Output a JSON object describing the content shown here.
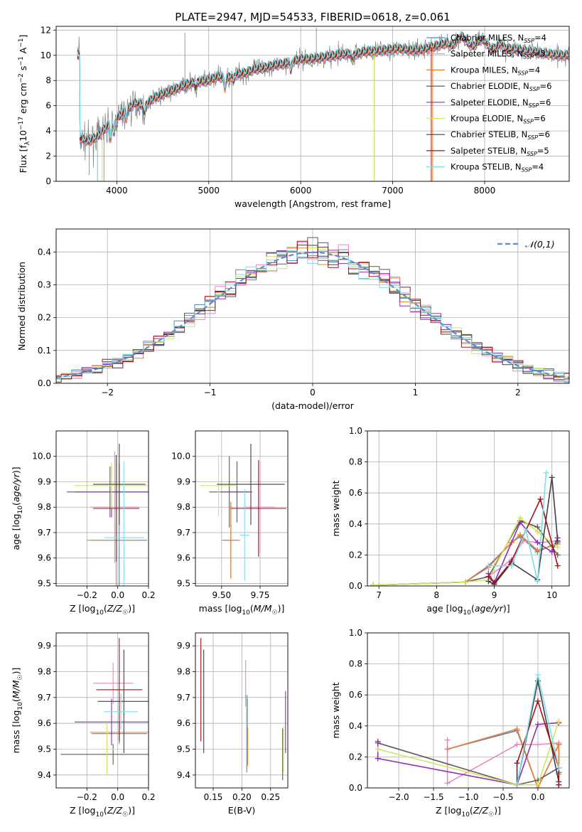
{
  "title": "PLATE=2947, MJD=54533, FIBERID=0618, z=0.061",
  "colors": [
    "#4c8bc9",
    "#e889c0",
    "#ef7f2d",
    "#5b5b5b",
    "#8e2fb2",
    "#d4e45e",
    "#404040",
    "#a5101a",
    "#7fdde6"
  ],
  "legend_models": [
    {
      "text": "Chabrier MILES, N",
      "sub": "SSP",
      "n": "=4"
    },
    {
      "text": "Salpeter MILES, N",
      "sub": "SSP",
      "n": "=5"
    },
    {
      "text": "Kroupa MILES, N",
      "sub": "SSP",
      "n": "=4"
    },
    {
      "text": "Chabrier ELODIE, N",
      "sub": "SSP",
      "n": "=6"
    },
    {
      "text": "Salpeter ELODIE, N",
      "sub": "SSP",
      "n": "=6"
    },
    {
      "text": "Kroupa ELODIE, N",
      "sub": "SSP",
      "n": "=6"
    },
    {
      "text": "Chabrier STELIB, N",
      "sub": "SSP",
      "n": "=6"
    },
    {
      "text": "Salpeter STELIB, N",
      "sub": "SSP",
      "n": "=5"
    },
    {
      "text": "Kroupa STELIB, N",
      "sub": "SSP",
      "n": "=4"
    }
  ],
  "chart_data": [
    {
      "id": "spectrum",
      "type": "line",
      "xlabel": "wavelength [Angstrom, rest frame]",
      "ylabel_parts": {
        "a": "Flux [f",
        "b": "λ",
        "c": "10",
        "d": "−17",
        "e": " erg cm",
        "f": "−2",
        "g": " s",
        "h": "−1",
        "i": " A",
        "j": "−1",
        "k": "]"
      },
      "xlim": [
        3340,
        8920
      ],
      "ylim": [
        0,
        12.3
      ],
      "xticks": [
        4000,
        5000,
        6000,
        7000,
        8000
      ],
      "yticks": [
        0,
        2,
        4,
        6,
        8,
        10,
        12
      ],
      "knots": [
        [
          3600,
          3.4
        ],
        [
          3700,
          3.2
        ],
        [
          3800,
          3.6
        ],
        [
          3900,
          4.4
        ],
        [
          4000,
          5.0
        ],
        [
          4100,
          5.6
        ],
        [
          4200,
          6.2
        ],
        [
          4300,
          6.0
        ],
        [
          4400,
          6.6
        ],
        [
          4500,
          6.9
        ],
        [
          4600,
          7.2
        ],
        [
          4700,
          7.5
        ],
        [
          4800,
          7.8
        ],
        [
          4900,
          7.9
        ],
        [
          5000,
          8.0
        ],
        [
          5100,
          8.3
        ],
        [
          5200,
          8.2
        ],
        [
          5300,
          8.5
        ],
        [
          5400,
          8.6
        ],
        [
          5500,
          8.9
        ],
        [
          5600,
          9.0
        ],
        [
          5700,
          9.2
        ],
        [
          5800,
          9.3
        ],
        [
          5900,
          9.5
        ],
        [
          6000,
          9.7
        ],
        [
          6100,
          9.7
        ],
        [
          6200,
          9.8
        ],
        [
          6300,
          9.9
        ],
        [
          6400,
          10.0
        ],
        [
          6500,
          10.1
        ],
        [
          6600,
          10.1
        ],
        [
          6700,
          10.3
        ],
        [
          6800,
          10.3
        ],
        [
          6900,
          10.4
        ],
        [
          7000,
          10.5
        ],
        [
          7100,
          10.5
        ],
        [
          7200,
          10.4
        ],
        [
          7300,
          10.4
        ],
        [
          7400,
          10.6
        ],
        [
          7500,
          10.8
        ],
        [
          7600,
          11.0
        ],
        [
          7700,
          11.2
        ],
        [
          7800,
          11.1
        ],
        [
          7900,
          11.0
        ],
        [
          8000,
          10.9
        ],
        [
          8100,
          10.8
        ],
        [
          8200,
          10.6
        ],
        [
          8300,
          10.5
        ],
        [
          8400,
          10.4
        ],
        [
          8500,
          10.3
        ],
        [
          8600,
          10.2
        ],
        [
          8700,
          10.1
        ],
        [
          8800,
          10.0
        ],
        [
          8900,
          10.0
        ]
      ],
      "data_range": [
        3570,
        8920
      ]
    },
    {
      "id": "residuals",
      "type": "histogram",
      "xlabel": "(data-model)/error",
      "ylabel": "Normed distribution",
      "xlim": [
        -2.5,
        2.5
      ],
      "ylim": [
        0,
        0.47
      ],
      "xticks": [
        -2,
        -1,
        0,
        1,
        2
      ],
      "yticks": [
        0,
        0.1,
        0.2,
        0.3,
        0.4
      ],
      "legend": "𝒩(0,1)",
      "bin_width": 0.1
    },
    {
      "id": "age_vs_Z",
      "type": "errorbar",
      "xlabel_parts": {
        "a": "Z [log",
        "b": "10",
        "c": "(Z/Z",
        "d": "☉",
        "e": ")]"
      },
      "ylabel_parts": {
        "a": "age  [log",
        "b": "10",
        "c": "(age/yr)]"
      },
      "xlim": [
        -0.4,
        0.2
      ],
      "ylim": [
        9.49,
        10.1
      ],
      "xticks": [
        -0.2,
        0.0,
        0.2
      ],
      "yticks": [
        9.5,
        9.6,
        9.7,
        9.8,
        9.9,
        10.0
      ],
      "points": [
        {
          "x": 0.01,
          "y": 9.67,
          "xe": 0.18,
          "ye": 0.3
        },
        {
          "x": -0.02,
          "y": 9.8,
          "xe": 0.16,
          "ye": 0.22
        },
        {
          "x": -0.01,
          "y": 9.67,
          "xe": 0.19,
          "ye": 0.3
        },
        {
          "x": -0.05,
          "y": 9.86,
          "xe": 0.28,
          "ye": 0.1
        },
        {
          "x": -0.04,
          "y": 9.86,
          "xe": 0.24,
          "ye": 0.1
        },
        {
          "x": -0.04,
          "y": 9.885,
          "xe": 0.24,
          "ye": 0.09
        },
        {
          "x": 0.01,
          "y": 9.89,
          "xe": 0.17,
          "ye": 0.16
        },
        {
          "x": -0.01,
          "y": 9.795,
          "xe": 0.15,
          "ye": 0.21
        },
        {
          "x": 0.04,
          "y": 9.68,
          "xe": 0.13,
          "ye": 0.3
        }
      ]
    },
    {
      "id": "age_vs_mass",
      "type": "errorbar",
      "xlabel_parts": {
        "a": "mass [log",
        "b": "10",
        "c": "(M/M",
        "d": "☉",
        "e": ")]"
      },
      "ylabel_parts": null,
      "xlim": [
        9.33,
        9.93
      ],
      "ylim": [
        9.49,
        10.1
      ],
      "xticks": [
        9.5,
        9.75
      ],
      "yticks": [
        9.5,
        9.6,
        9.7,
        9.8,
        9.9,
        10.0
      ],
      "points": [
        {
          "x": 9.56,
          "y": 9.67,
          "xe": 0.05,
          "ye": 0.15
        },
        {
          "x": 9.75,
          "y": 9.8,
          "xe": 0.1,
          "ye": 0.18
        },
        {
          "x": 9.56,
          "y": 9.67,
          "xe": 0.06,
          "ye": 0.15
        },
        {
          "x": 9.55,
          "y": 9.86,
          "xe": 0.13,
          "ye": 0.14
        },
        {
          "x": 9.6,
          "y": 9.86,
          "xe": 0.1,
          "ye": 0.12
        },
        {
          "x": 9.48,
          "y": 9.885,
          "xe": 0.12,
          "ye": 0.12
        },
        {
          "x": 9.69,
          "y": 9.89,
          "xe": 0.22,
          "ye": 0.16
        },
        {
          "x": 9.74,
          "y": 9.795,
          "xe": 0.18,
          "ye": 0.19
        },
        {
          "x": 9.65,
          "y": 9.69,
          "xe": 0.03,
          "ye": 0.18
        }
      ]
    },
    {
      "id": "mw_vs_age",
      "type": "line",
      "xlabel_parts": {
        "a": "age  [log",
        "b": "10",
        "c": "(age/yr)]"
      },
      "ylabel": "mass weight",
      "xlim": [
        6.8,
        10.3
      ],
      "ylim": [
        0,
        1.0
      ],
      "xticks": [
        7,
        8,
        9,
        10
      ],
      "yticks": [
        0.0,
        0.2,
        0.4,
        0.6,
        0.8,
        1.0
      ],
      "series": [
        {
          "x": [
            6.9,
            8.5,
            8.9,
            9.3,
            9.45,
            9.75,
            10.1
          ],
          "y": [
            0.005,
            0.025,
            0.13,
            0.28,
            0.32,
            0.22,
            0.28
          ]
        },
        {
          "x": [
            8.9,
            9.3,
            9.5,
            9.8,
            10.1
          ],
          "y": [
            0.06,
            0.17,
            0.29,
            0.28,
            0.29
          ]
        },
        {
          "x": [
            6.9,
            8.5,
            8.9,
            9.3,
            9.45,
            9.75,
            10.1
          ],
          "y": [
            0.005,
            0.025,
            0.12,
            0.28,
            0.33,
            0.23,
            0.27
          ]
        },
        {
          "x": [
            6.9,
            8.5,
            8.9,
            9.45,
            9.75,
            10.1
          ],
          "y": [
            0.005,
            0.025,
            0.06,
            0.42,
            0.38,
            0.2
          ]
        },
        {
          "x": [
            8.9,
            9.0,
            9.45,
            9.75,
            10.0,
            10.1
          ],
          "y": [
            0.08,
            0.02,
            0.41,
            0.28,
            0.22,
            0.31
          ]
        },
        {
          "x": [
            6.9,
            8.5,
            8.9,
            9.45,
            9.75,
            10.1
          ],
          "y": [
            0.005,
            0.025,
            0.04,
            0.44,
            0.35,
            0.25
          ]
        },
        {
          "x": [
            8.9,
            9.0,
            9.3,
            9.75,
            10.0,
            10.1
          ],
          "y": [
            0.03,
            0.01,
            0.15,
            0.04,
            0.7,
            0.29
          ]
        },
        {
          "x": [
            8.9,
            9.0,
            9.3,
            9.8,
            10.1
          ],
          "y": [
            0.06,
            0.02,
            0.16,
            0.56,
            0.13
          ]
        },
        {
          "x": [
            8.9,
            9.3,
            9.55,
            9.75,
            9.9
          ],
          "y": [
            0.13,
            0.13,
            0.36,
            0.03,
            0.73
          ]
        }
      ]
    },
    {
      "id": "mass_vs_Z",
      "type": "errorbar",
      "xlabel_parts": {
        "a": "Z [log",
        "b": "10",
        "c": "(Z/Z",
        "d": "☉",
        "e": ")]"
      },
      "ylabel_parts": {
        "a": "mass [log",
        "b": "10",
        "c": "(M/M",
        "d": "☉",
        "e": ")]"
      },
      "xlim": [
        -0.4,
        0.2
      ],
      "ylim": [
        9.35,
        9.95
      ],
      "xticks": [
        -0.2,
        0.0,
        0.2
      ],
      "yticks": [
        9.4,
        9.5,
        9.6,
        9.7,
        9.8,
        9.9
      ],
      "points": [
        {
          "x": 0.01,
          "y": 9.56,
          "xe": 0.18,
          "ye": 0.04
        },
        {
          "x": -0.03,
          "y": 9.755,
          "xe": 0.13,
          "ye": 0.08
        },
        {
          "x": 0.01,
          "y": 9.565,
          "xe": 0.19,
          "ye": 0.03
        },
        {
          "x": -0.03,
          "y": 9.48,
          "xe": 0.34,
          "ye": 0.04
        },
        {
          "x": -0.04,
          "y": 9.605,
          "xe": 0.24,
          "ye": 0.09
        },
        {
          "x": -0.07,
          "y": 9.5,
          "xe": 0.29,
          "ye": 0.1
        },
        {
          "x": 0.04,
          "y": 9.685,
          "xe": 0.17,
          "ye": 0.2
        },
        {
          "x": 0.01,
          "y": 9.73,
          "xe": 0.15,
          "ye": 0.2
        },
        {
          "x": 0.02,
          "y": 9.645,
          "xe": 0.11,
          "ye": 0.07
        }
      ]
    },
    {
      "id": "mass_vs_ebv",
      "type": "errorbar",
      "xlabel": "E(B-V)",
      "xlim": [
        0.119,
        0.28
      ],
      "ylim": [
        9.35,
        9.95
      ],
      "xticks": [
        0.15,
        0.2,
        0.25
      ],
      "yticks": [
        9.4,
        9.5,
        9.6,
        9.7,
        9.8,
        9.9
      ],
      "points": [
        {
          "x": 0.2085,
          "y": 9.56,
          "xe": 0,
          "ye": 0.15
        },
        {
          "x": 0.2065,
          "y": 9.755,
          "xe": 0,
          "ye": 0.09
        },
        {
          "x": 0.21,
          "y": 9.565,
          "xe": 0,
          "ye": 0.13
        },
        {
          "x": 0.271,
          "y": 9.48,
          "xe": 0,
          "ye": 0.1
        },
        {
          "x": 0.276,
          "y": 9.605,
          "xe": 0,
          "ye": 0.12
        },
        {
          "x": 0.2725,
          "y": 9.5,
          "xe": 0,
          "ye": 0.09
        },
        {
          "x": 0.1335,
          "y": 9.685,
          "xe": 0,
          "ye": 0.2
        },
        {
          "x": 0.1285,
          "y": 9.73,
          "xe": 0,
          "ye": 0.2
        },
        {
          "x": 0.2095,
          "y": 9.645,
          "xe": 0,
          "ye": 0.06
        }
      ]
    },
    {
      "id": "mw_vs_Z",
      "type": "line",
      "xlabel_parts": {
        "a": "Z [log",
        "b": "10",
        "c": "(Z/Z",
        "d": "☉",
        "e": ")]"
      },
      "ylabel": "mass weight",
      "xlim": [
        -2.45,
        0.45
      ],
      "ylim": [
        0,
        1.0
      ],
      "xticks": [
        -2.0,
        -1.5,
        -1.0,
        -0.5,
        0.0
      ],
      "yticks": [
        0.0,
        0.2,
        0.4,
        0.6,
        0.8,
        1.0
      ],
      "series": [
        {
          "x": [
            -1.3,
            -0.3,
            0.0,
            0.3,
            0.3
          ],
          "y": [
            0.25,
            0.37,
            0.0,
            0.28,
            0.1
          ]
        },
        {
          "x": [
            -1.3,
            -1.3,
            -0.3,
            0.0,
            0.3
          ],
          "y": [
            0.31,
            0.03,
            0.28,
            0.28,
            0.29
          ]
        },
        {
          "x": [
            -1.3,
            -0.3,
            0.0,
            0.3,
            0.3
          ],
          "y": [
            0.25,
            0.38,
            0.0,
            0.28,
            0.09
          ]
        },
        {
          "x": [
            -2.3,
            -0.3,
            0.0,
            0.3
          ],
          "y": [
            0.29,
            0.02,
            0.05,
            0.13
          ]
        },
        {
          "x": [
            -2.3,
            -2.3,
            -0.3,
            0.0,
            0.3
          ],
          "y": [
            0.3,
            0.19,
            0.02,
            0.41,
            0.42
          ]
        },
        {
          "x": [
            -2.3,
            -0.3,
            0.0,
            0.3
          ],
          "y": [
            0.25,
            0.02,
            0.02,
            0.43
          ]
        },
        {
          "x": [
            -0.3,
            -0.3,
            0.0,
            0.3,
            0.3
          ],
          "y": [
            0.16,
            0.02,
            0.69,
            0.04,
            0.02
          ]
        },
        {
          "x": [
            -0.3,
            0.0,
            0.3,
            0.3
          ],
          "y": [
            0.16,
            0.56,
            0.13,
            0.02
          ]
        },
        {
          "x": [
            -0.3,
            0.0,
            0.3
          ],
          "y": [
            0.02,
            0.73,
            0.13
          ]
        }
      ]
    }
  ]
}
